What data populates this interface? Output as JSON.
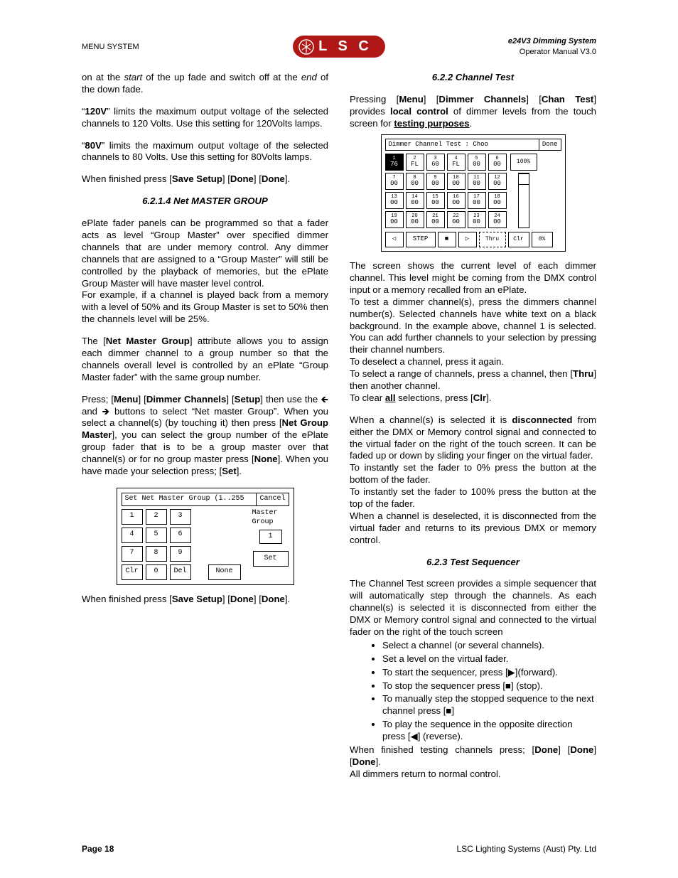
{
  "header": {
    "left": "MENU SYSTEM",
    "logo_text": "L S C",
    "right_line1": "e24V3 Dimming System",
    "right_line2": "Operator Manual V3.0"
  },
  "footer": {
    "left": "Page 18",
    "right": "LSC Lighting Systems (Aust) Pty. Ltd"
  },
  "col1": {
    "p1_a": "on at the ",
    "p1_b": "start",
    "p1_c": " of the up fade and switch off at the ",
    "p1_d": "end",
    "p1_e": " of the down fade.",
    "p2_a": "“",
    "p2_b": "120V",
    "p2_c": "” limits the maximum output voltage of the selected channels to 120 Volts. Use this setting for 120Volts lamps.",
    "p3_a": "“",
    "p3_b": "80V",
    "p3_c": "” limits the maximum output voltage of the selected channels to 80 Volts. Use this setting for 80Volts lamps.",
    "p4_a": "When finished press [",
    "p4_b": "Save Setup",
    "p4_c": "] [",
    "p4_d": "Done",
    "p4_e": "] [",
    "p4_f": "Done",
    "p4_g": "].",
    "h1": "6.2.1.4 Net MASTER GROUP",
    "p5": "ePlate fader panels can be programmed so that a fader acts as level “Group Master” over specified dimmer channels that are under memory control. Any dimmer channels that are assigned to a “Group Master” will still be controlled by the playback of memories, but the ePlate Group Master will have master level control.",
    "p6": "For example, if a channel is played back from a memory with a level of 50% and its Group Master is set to 50% then the channels level will be 25%.",
    "p7_a": "The [",
    "p7_b": "Net Master Group",
    "p7_c": "] attribute allows you to assign each dimmer channel to a group number so that the channels overall level is controlled by an ePlate “Group Master fader” with the same group number.",
    "p8_a": "Press; [",
    "p8_b": "Menu",
    "p8_c": "] [",
    "p8_d": "Dimmer Channels",
    "p8_e": "] [",
    "p8_f": "Setup",
    "p8_g": "] then use the ",
    "p8_h": " and ",
    "p8_i": " buttons to select “Net master Group”. When you select a channel(s) (by touching it) then press [",
    "p8_j": "Net Group Master",
    "p8_k": "], you can select the group number of the ePlate group fader that is to be a group master over that channel(s) or for no group master press [",
    "p8_l": "None",
    "p8_m": "]. When you have made your selection press; [",
    "p8_n": "Set",
    "p8_o": "].",
    "p9_a": "When finished press [",
    "p9_b": "Save Setup",
    "p9_c": "] [",
    "p9_d": "Done",
    "p9_e": "] [",
    "p9_f": "Done",
    "p9_g": "]."
  },
  "fig1": {
    "title_left": "Set Net Master Group (1..255",
    "title_right": "Cancel",
    "keys_r1": [
      "1",
      "2",
      "3"
    ],
    "keys_r2": [
      "4",
      "5",
      "6"
    ],
    "keys_r3": [
      "7",
      "8",
      "9"
    ],
    "keys_r4": [
      "Clr",
      "0",
      "Del"
    ],
    "mg_label": "Master Group",
    "mg_value": "1",
    "set_label": "Set",
    "none_label": "None"
  },
  "col2": {
    "h1": "6.2.2 Channel Test",
    "p1_a": "Pressing [",
    "p1_b": "Menu",
    "p1_c": "] [",
    "p1_d": "Dimmer Channels",
    "p1_e": "] [",
    "p1_f": "Chan Test",
    "p1_g": "] provides ",
    "p1_h": "local control",
    "p1_i": " of dimmer levels from the touch screen for ",
    "p1_j": "testing purposes",
    "p1_k": ".",
    "p2": "The screen shows the current level of each dimmer channel. This level might be coming from the DMX control input or a memory recalled from an ePlate.",
    "p3": "To test a dimmer channel(s), press the dimmers channel number(s). Selected channels have white text on a black background. In the example above, channel 1 is selected. You can add further channels to your selection by pressing their channel numbers.",
    "p4": "To deselect a channel, press it again.",
    "p5_a": "To select a range of channels, press a channel, then [",
    "p5_b": "Thru",
    "p5_c": "] then another channel.",
    "p6_a": "To clear ",
    "p6_b": "all",
    "p6_c": " selections, press [",
    "p6_d": "Clr",
    "p6_e": "].",
    "p7_a": "When a channel(s) is selected it is ",
    "p7_b": "disconnected",
    "p7_c": " from either the DMX or Memory control signal and connected to the virtual fader on the right of the touch screen. It can be faded up or down by sliding your finger on the virtual fader.",
    "p8": "To instantly set the fader to 0% press the button at the bottom of the fader.",
    "p9": "To instantly set the fader to 100% press the button at the top of the fader.",
    "p10": "When a channel is deselected, it is disconnected from the virtual fader and returns to its previous DMX or memory control.",
    "h2": "6.2.3 Test Sequencer",
    "p11": "The Channel Test screen provides a simple sequencer that will automatically step through the channels. As each channel(s) is selected it is disconnected from either the DMX or Memory control signal and connected to the virtual fader on the right of the touch screen",
    "b1": "Select a channel (or several channels).",
    "b2": "Set a level on the virtual fader.",
    "b3": "To start the sequencer, press [▶](forward).",
    "b4": "To stop the sequencer press [■] (stop).",
    "b5": "To manually step the stopped sequence to the next channel press [■]",
    "b6": "To play the sequence in the opposite direction press [◀] (reverse).",
    "p12_a": "When finished testing channels press; [",
    "p12_b": "Done",
    "p12_c": "] [",
    "p12_d": "Done",
    "p12_e": "] [",
    "p12_f": "Done",
    "p12_g": "].",
    "p13": "All dimmers return to normal control."
  },
  "fig2": {
    "title_left": "Dimmer Channel Test : Choo",
    "title_right": "Done",
    "top_btn": "100%",
    "step": "STEP",
    "thru": "Thru",
    "clr": "Clr",
    "pct": "0%",
    "rows": [
      [
        {
          "n": "1",
          "v": "76",
          "sel": true
        },
        {
          "n": "2",
          "v": "FL"
        },
        {
          "n": "3",
          "v": "60"
        },
        {
          "n": "4",
          "v": "FL"
        },
        {
          "n": "5",
          "v": "00"
        },
        {
          "n": "6",
          "v": "00"
        }
      ],
      [
        {
          "n": "7",
          "v": "00"
        },
        {
          "n": "8",
          "v": "00"
        },
        {
          "n": "9",
          "v": "00"
        },
        {
          "n": "10",
          "v": "00"
        },
        {
          "n": "11",
          "v": "00"
        },
        {
          "n": "12",
          "v": "00"
        }
      ],
      [
        {
          "n": "13",
          "v": "00"
        },
        {
          "n": "14",
          "v": "00"
        },
        {
          "n": "15",
          "v": "00"
        },
        {
          "n": "16",
          "v": "00"
        },
        {
          "n": "17",
          "v": "00"
        },
        {
          "n": "18",
          "v": "00"
        }
      ],
      [
        {
          "n": "19",
          "v": "00"
        },
        {
          "n": "20",
          "v": "00"
        },
        {
          "n": "21",
          "v": "00"
        },
        {
          "n": "22",
          "v": "00"
        },
        {
          "n": "23",
          "v": "00"
        },
        {
          "n": "24",
          "v": "00"
        }
      ]
    ]
  }
}
